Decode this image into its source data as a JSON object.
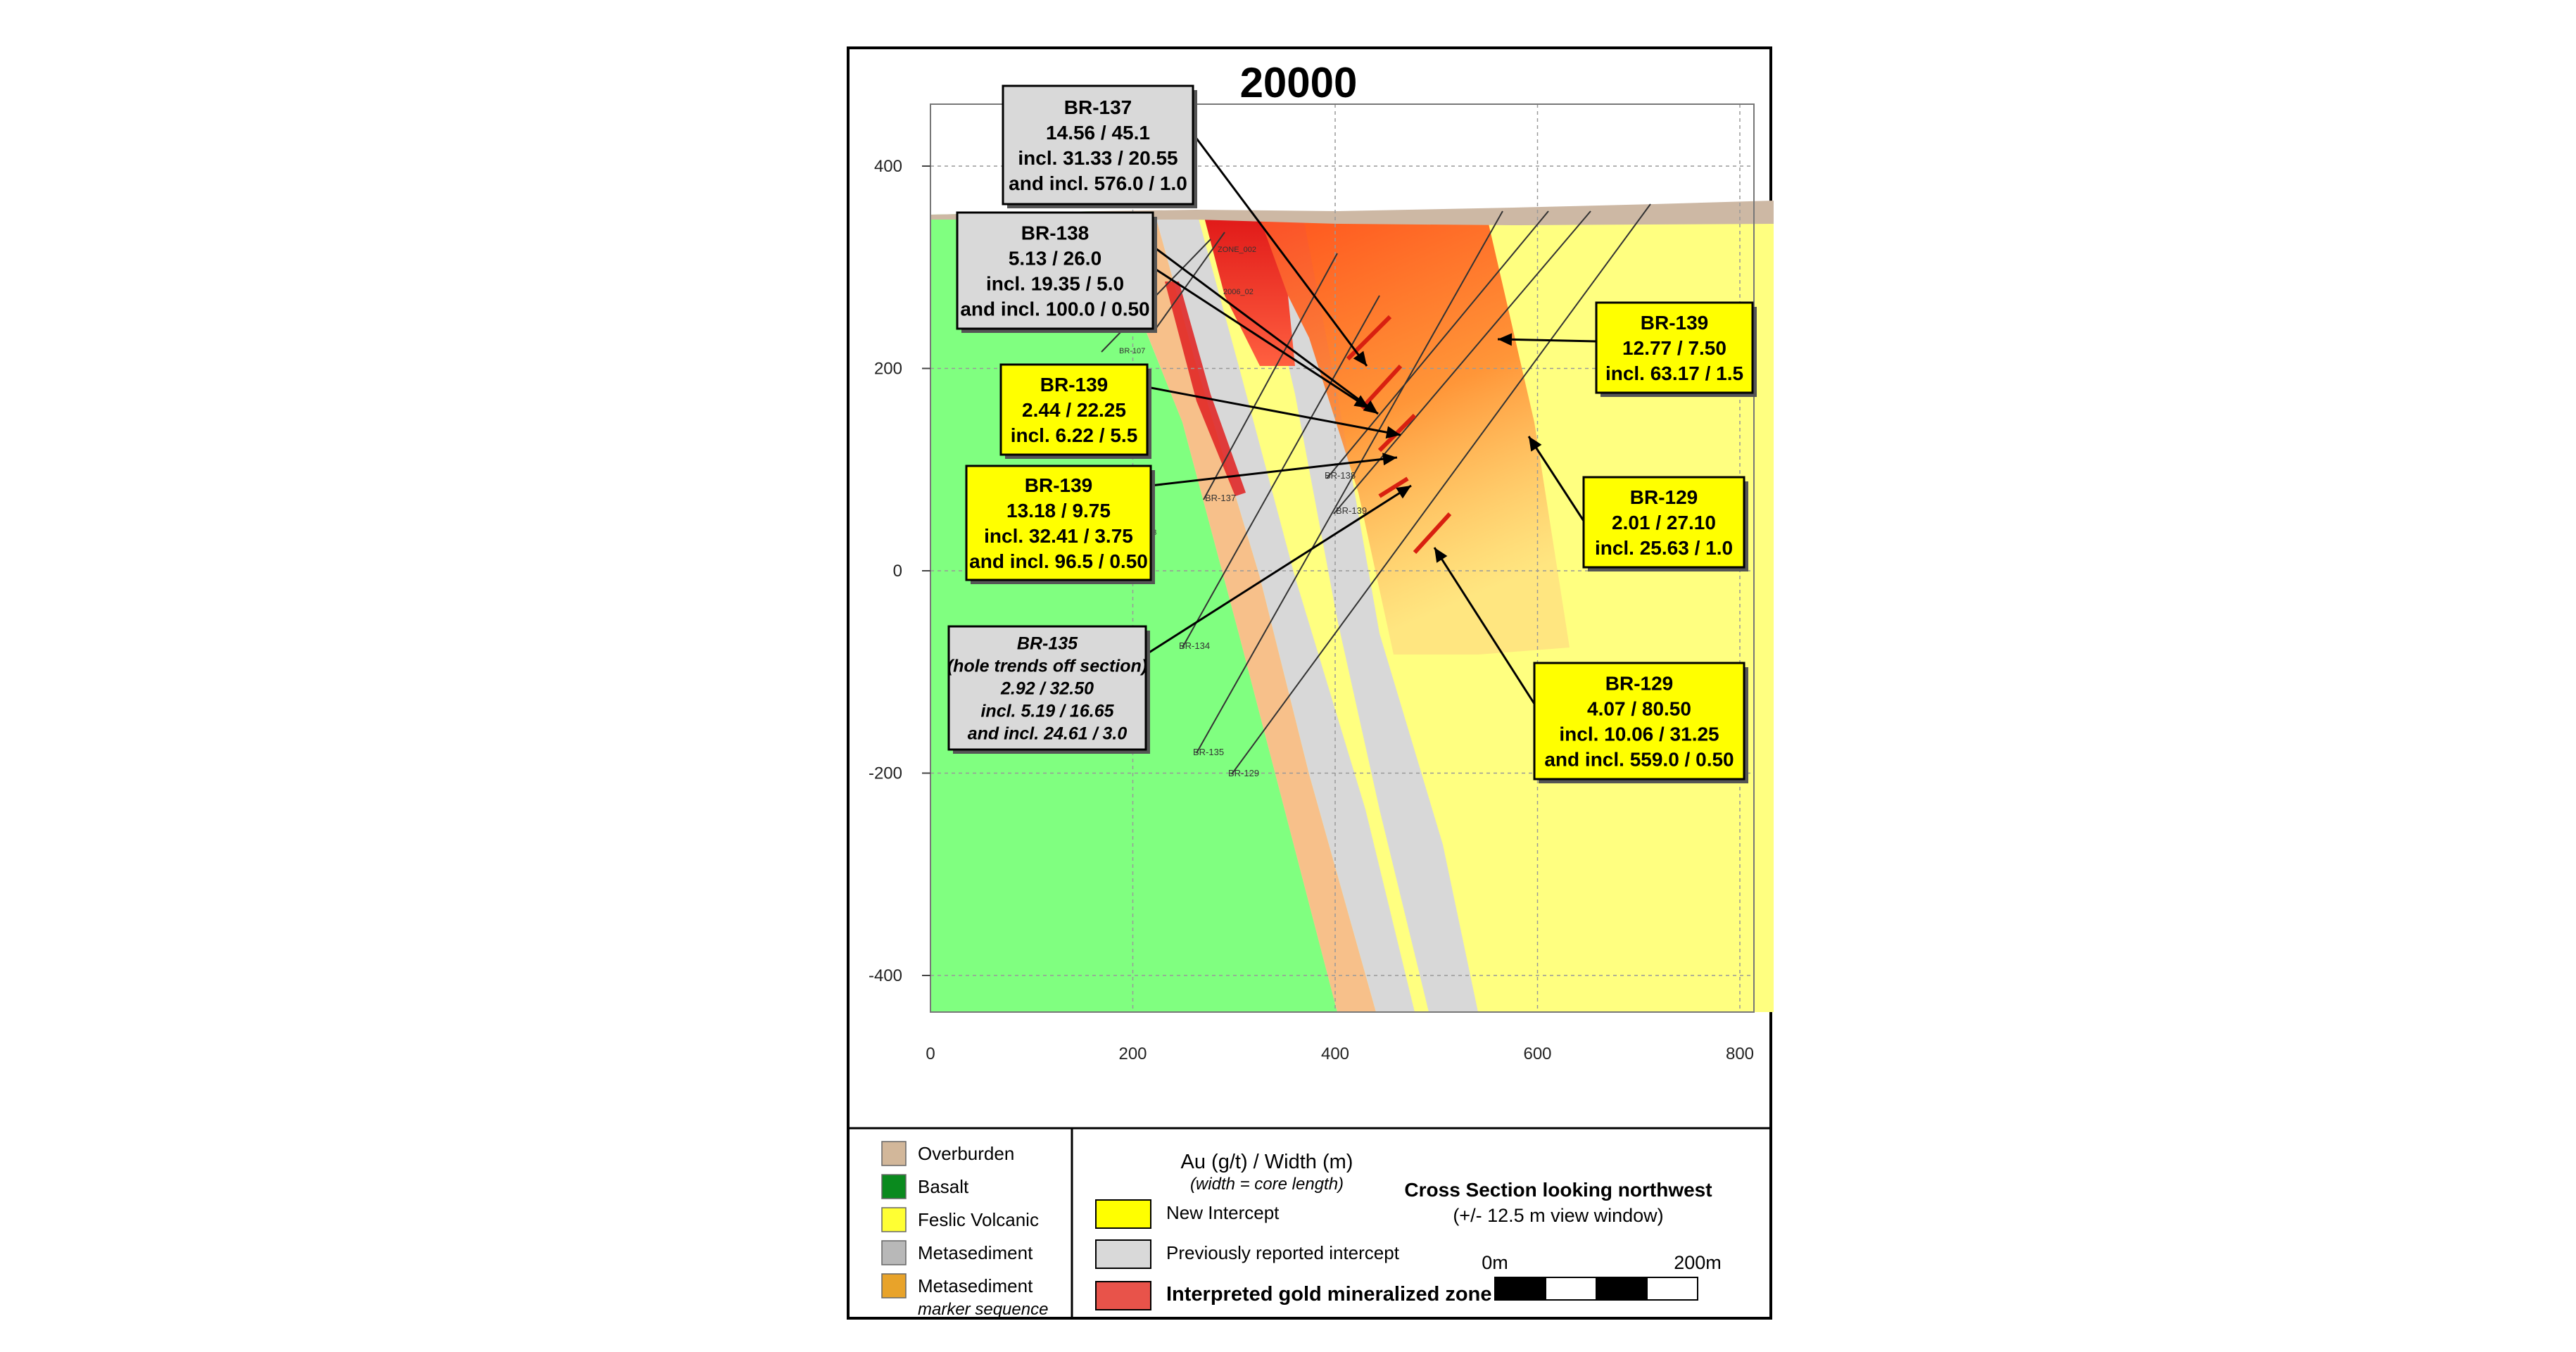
{
  "title": "20000",
  "axes": {
    "x_ticks": [
      "0",
      "200",
      "400",
      "600",
      "800"
    ],
    "y_ticks": [
      "400",
      "200",
      "0",
      "-200",
      "-400"
    ]
  },
  "hole_labels": [
    "BR-137",
    "BR-138",
    "BR-139",
    "BR-134",
    "BR-135",
    "BR-129",
    "ZONE_002",
    "2006_02",
    "BR-107",
    "133"
  ],
  "callouts": {
    "br137": {
      "lines": [
        "BR-137",
        "14.56 / 45.1",
        "incl. 31.33 / 20.55",
        "and incl. 576.0 / 1.0"
      ]
    },
    "br138": {
      "lines": [
        "BR-138",
        "5.13 / 26.0",
        "incl. 19.35 / 5.0",
        "and incl. 100.0 / 0.50"
      ]
    },
    "br139_a": {
      "lines": [
        "BR-139",
        "2.44 / 22.25",
        "incl. 6.22 / 5.5"
      ]
    },
    "br139_b": {
      "lines": [
        "BR-139",
        "13.18 / 9.75",
        "incl. 32.41 / 3.75",
        "and incl. 96.5 / 0.50"
      ]
    },
    "br135": {
      "lines": [
        "BR-135",
        "(hole trends off section)",
        "2.92 / 32.50",
        "incl. 5.19 / 16.65",
        "and incl. 24.61 / 3.0"
      ]
    },
    "br139_c": {
      "lines": [
        "BR-139",
        "12.77 / 7.50",
        "incl. 63.17 / 1.5"
      ]
    },
    "br129_a": {
      "lines": [
        "BR-129",
        "2.01 / 27.10",
        "incl. 25.63 / 1.0"
      ]
    },
    "br129_b": {
      "lines": [
        "BR-129",
        "4.07 / 80.50",
        "incl. 10.06 / 31.25",
        "and incl. 559.0 / 0.50"
      ]
    }
  },
  "legend": {
    "lithology": [
      {
        "label": "Overburden",
        "color": "#d2b79a"
      },
      {
        "label": "Basalt",
        "color": "#0a8a1e"
      },
      {
        "label": "Feslic Volcanic",
        "color": "#ffff33"
      },
      {
        "label": "Metasediment",
        "color": "#b8b8b8"
      },
      {
        "label": "Metasediment",
        "sublabel": "marker sequence",
        "color": "#e8a32a"
      }
    ],
    "intercepts": {
      "heading": "Au (g/t) / Width (m)",
      "subheading": "(width = core length)",
      "items": [
        {
          "label": "New Intercept",
          "color": "#ffff00"
        },
        {
          "label": "Previously reported  intercept",
          "color": "#d9d9d9"
        },
        {
          "label": "Interpreted gold mineralized zone",
          "color": "#e8534a"
        }
      ]
    },
    "section": {
      "title": "Cross Section looking northwest",
      "subtitle": "(+/- 12.5 m view window)",
      "scale_left": "0m",
      "scale_right": "200m"
    }
  },
  "colors": {
    "basalt_fill": "#80ff80",
    "volcanic_fill": "#ffff80",
    "metased_fill": "#d8d8d8",
    "marker_fill": "#f7c08a",
    "overburden": "#cdb8a4",
    "zone_dark": "#e02020",
    "zone_orange": "#ff5a1e",
    "new_intercept": "#ffff00",
    "old_intercept": "#d9d9d9"
  }
}
